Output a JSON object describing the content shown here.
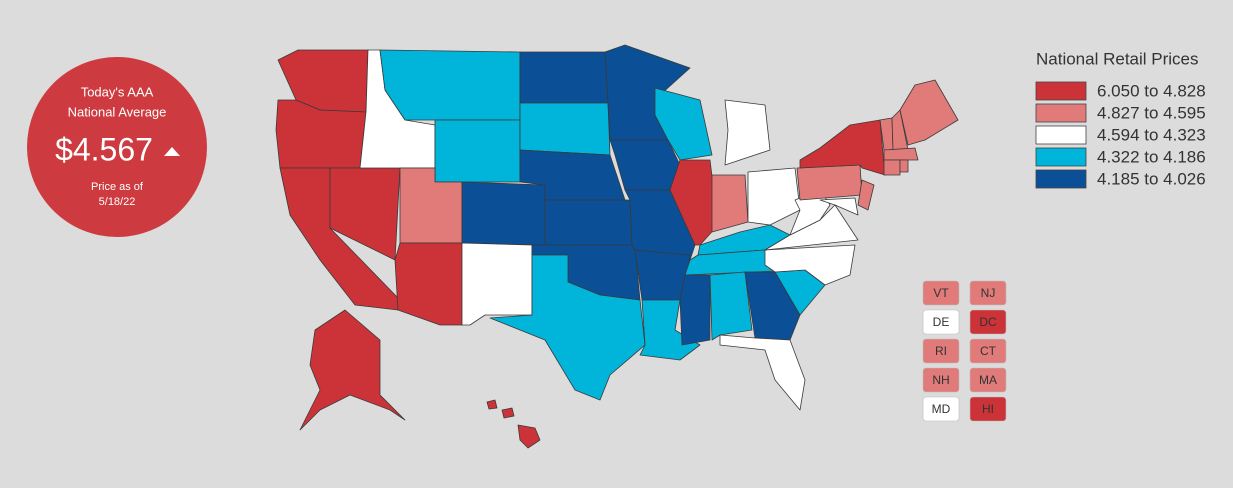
{
  "badge": {
    "title_lines": [
      "Today's AAA",
      "National Average"
    ],
    "price": "$4.567",
    "date_lines": [
      "Price as of",
      "5/18/22"
    ]
  },
  "legend": {
    "title": "National Retail Prices",
    "bins": [
      {
        "label": "6.050 to 4.828",
        "color": "#cc3338"
      },
      {
        "label": "4.827 to 4.595",
        "color": "#e07b79"
      },
      {
        "label": "4.594 to 4.323",
        "color": "#ffffff"
      },
      {
        "label": "4.322 to 4.186",
        "color": "#00b4da"
      },
      {
        "label": "4.185 to 4.026",
        "color": "#0b4f96"
      }
    ]
  },
  "small_states": [
    "VT",
    "NJ",
    "DE",
    "DC",
    "RI",
    "CT",
    "NH",
    "MA",
    "MD",
    "HI"
  ]
}
